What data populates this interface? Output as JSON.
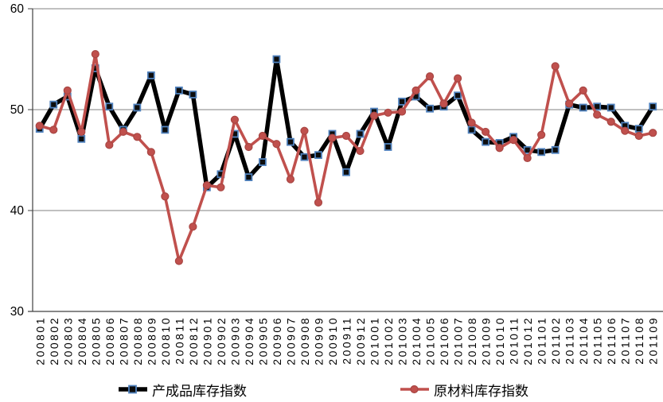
{
  "chart_data": {
    "type": "line",
    "title": "",
    "xlabel": "",
    "ylabel": "",
    "ylim": [
      30,
      60
    ],
    "yticks": [
      30,
      40,
      50,
      60
    ],
    "grid": "horizontal",
    "legend_position": "bottom",
    "background": "#FFFFFF",
    "gridline_color": "#808080",
    "axis_color": "#404040",
    "tick_label_color": "#000000",
    "categories": [
      "200801",
      "200802",
      "200803",
      "200804",
      "200805",
      "200806",
      "200807",
      "200808",
      "200809",
      "200810",
      "200811",
      "200812",
      "200901",
      "200902",
      "200903",
      "200904",
      "200905",
      "200906",
      "200907",
      "200908",
      "200909",
      "200910",
      "200911",
      "200912",
      "201001",
      "201002",
      "201003",
      "201004",
      "201005",
      "201006",
      "201007",
      "201008",
      "201009",
      "201010",
      "201011",
      "201012",
      "201101",
      "201102",
      "201103",
      "201104",
      "201105",
      "201106",
      "201107",
      "201108",
      "201109"
    ],
    "series": [
      {
        "name": "产成品库存指数",
        "color": "#000000",
        "marker": "square",
        "marker_fill": "#0d0d0d",
        "marker_stroke": "#4F81BD",
        "line_width": 5.5,
        "values": [
          48.1,
          50.5,
          51.3,
          47.1,
          54.1,
          50.3,
          48.0,
          50.2,
          53.4,
          48.0,
          51.9,
          51.5,
          42.3,
          43.6,
          47.6,
          43.3,
          44.8,
          55.0,
          46.8,
          45.3,
          45.5,
          47.6,
          43.8,
          47.6,
          49.8,
          46.3,
          50.8,
          51.3,
          50.1,
          50.3,
          51.4,
          48.0,
          46.8,
          46.7,
          47.3,
          46.0,
          45.8,
          46.0,
          50.5,
          50.2,
          50.3,
          50.2,
          48.4,
          48.1,
          50.3
        ]
      },
      {
        "name": "原材料库存指数",
        "color": "#C0504D",
        "marker": "circle",
        "marker_fill": "#C0504D",
        "marker_stroke": "#A84643",
        "line_width": 3.6,
        "values": [
          48.4,
          48.0,
          51.9,
          47.8,
          55.5,
          46.5,
          47.8,
          47.3,
          45.8,
          41.4,
          35.0,
          38.4,
          42.5,
          42.3,
          49.0,
          46.3,
          47.4,
          46.6,
          43.1,
          47.9,
          40.8,
          47.2,
          47.4,
          45.9,
          49.4,
          49.7,
          49.8,
          51.9,
          53.3,
          50.6,
          53.1,
          48.7,
          47.8,
          46.2,
          47.0,
          45.2,
          47.5,
          54.3,
          50.6,
          51.9,
          49.5,
          48.8,
          47.9,
          47.4,
          47.7
        ]
      }
    ]
  }
}
